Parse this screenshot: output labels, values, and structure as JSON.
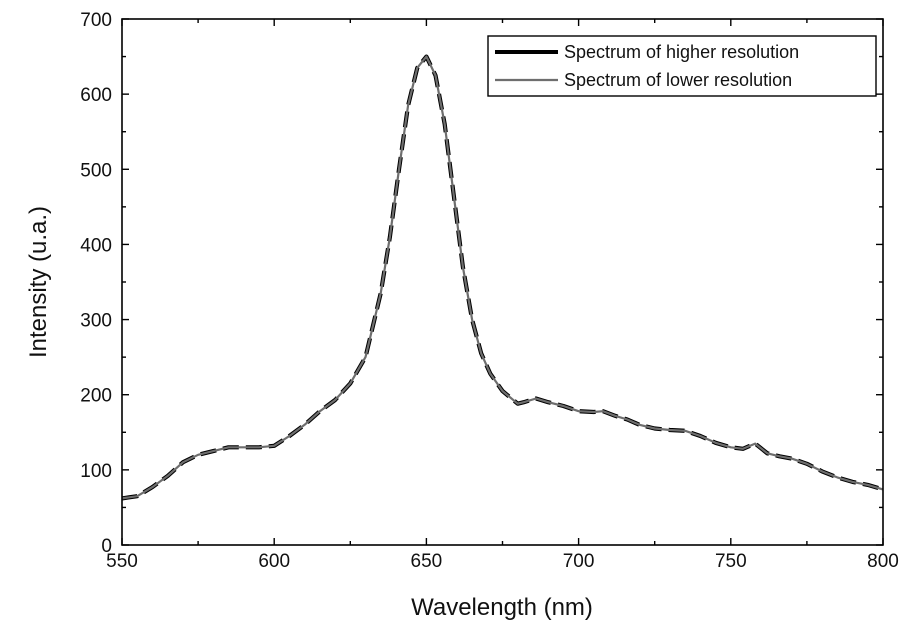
{
  "chart_data": {
    "type": "line",
    "title": "",
    "xlabel": "Wavelength (nm)",
    "ylabel": "Intensity (u.a.)",
    "xlim": [
      550,
      800
    ],
    "ylim": [
      0,
      700
    ],
    "xticks": [
      550,
      600,
      650,
      700,
      750,
      800
    ],
    "yticks": [
      0,
      100,
      200,
      300,
      400,
      500,
      600,
      700
    ],
    "grid": false,
    "legend_position": "top-right",
    "series": [
      {
        "name": "Spectrum of higher resolution",
        "color": "#000000",
        "style": "dashed-thick",
        "x": [
          550,
          555,
          560,
          565,
          570,
          575,
          580,
          585,
          590,
          595,
          600,
          605,
          610,
          615,
          620,
          625,
          630,
          635,
          638,
          641,
          644,
          647,
          650,
          653,
          656,
          659,
          662,
          665,
          668,
          671,
          675,
          680,
          682,
          686,
          690,
          695,
          700,
          705,
          708,
          712,
          716,
          720,
          725,
          730,
          735,
          740,
          745,
          750,
          754,
          758,
          762,
          766,
          770,
          775,
          780,
          785,
          790,
          795,
          800
        ],
        "y": [
          62,
          65,
          77,
          92,
          110,
          120,
          125,
          130,
          130,
          130,
          132,
          145,
          160,
          178,
          193,
          215,
          250,
          335,
          410,
          500,
          585,
          635,
          650,
          625,
          560,
          465,
          370,
          300,
          255,
          228,
          205,
          188,
          190,
          195,
          190,
          185,
          178,
          177,
          178,
          172,
          167,
          160,
          155,
          153,
          152,
          145,
          136,
          130,
          128,
          135,
          122,
          118,
          115,
          108,
          98,
          90,
          84,
          80,
          74
        ]
      },
      {
        "name": "Spectrum of lower resolution",
        "color": "#6e6e6e",
        "style": "solid",
        "x": [
          550,
          555,
          560,
          565,
          570,
          575,
          580,
          585,
          590,
          595,
          600,
          605,
          610,
          615,
          620,
          625,
          630,
          635,
          638,
          641,
          644,
          647,
          650,
          653,
          656,
          659,
          662,
          665,
          668,
          671,
          675,
          680,
          682,
          686,
          690,
          695,
          700,
          705,
          708,
          712,
          716,
          720,
          725,
          730,
          735,
          740,
          745,
          750,
          754,
          758,
          762,
          766,
          770,
          775,
          780,
          785,
          790,
          795,
          800
        ],
        "y": [
          62,
          65,
          77,
          92,
          110,
          120,
          125,
          130,
          130,
          130,
          132,
          145,
          160,
          178,
          193,
          215,
          250,
          335,
          410,
          500,
          585,
          635,
          650,
          625,
          560,
          465,
          370,
          300,
          255,
          228,
          205,
          188,
          190,
          195,
          190,
          185,
          178,
          177,
          178,
          172,
          167,
          160,
          155,
          153,
          152,
          145,
          136,
          130,
          128,
          135,
          122,
          118,
          115,
          108,
          98,
          90,
          84,
          80,
          74
        ]
      }
    ]
  }
}
